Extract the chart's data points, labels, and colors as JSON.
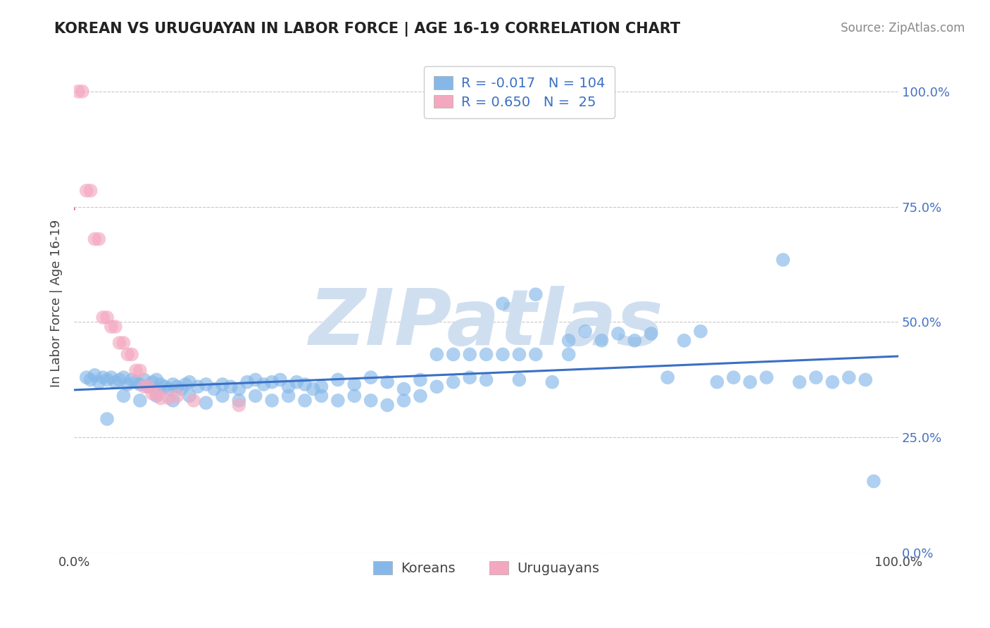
{
  "title": "KOREAN VS URUGUAYAN IN LABOR FORCE | AGE 16-19 CORRELATION CHART",
  "source_text": "Source: ZipAtlas.com",
  "ylabel": "In Labor Force | Age 16-19",
  "xlim": [
    0.0,
    1.0
  ],
  "ylim": [
    0.0,
    1.08
  ],
  "yticks": [
    0.0,
    0.25,
    0.5,
    0.75,
    1.0
  ],
  "xticks": [
    0.0,
    1.0
  ],
  "xtick_labels": [
    "0.0%",
    "100.0%"
  ],
  "ytick_labels_right": [
    "0.0%",
    "25.0%",
    "50.0%",
    "75.0%",
    "100.0%"
  ],
  "korean_R": -0.017,
  "korean_N": 104,
  "uruguayan_R": 0.65,
  "uruguayan_N": 25,
  "korean_color": "#85b8e8",
  "uruguayan_color": "#f4a8c0",
  "trend_korean_color": "#3a6fc4",
  "trend_uruguayan_color": "#e06080",
  "watermark": "ZIPatlas",
  "watermark_color": "#d0dff0",
  "background_color": "#ffffff",
  "grid_color": "#c8c8c8",
  "legend_label_korean": "Koreans",
  "legend_label_uruguayan": "Uruguayans",
  "k_x": [
    0.015,
    0.02,
    0.025,
    0.03,
    0.035,
    0.04,
    0.045,
    0.05,
    0.055,
    0.06,
    0.065,
    0.07,
    0.075,
    0.08,
    0.085,
    0.09,
    0.095,
    0.1,
    0.105,
    0.11,
    0.115,
    0.12,
    0.125,
    0.13,
    0.135,
    0.14,
    0.15,
    0.16,
    0.17,
    0.18,
    0.19,
    0.2,
    0.21,
    0.22,
    0.23,
    0.24,
    0.25,
    0.26,
    0.27,
    0.28,
    0.29,
    0.3,
    0.32,
    0.34,
    0.36,
    0.38,
    0.4,
    0.42,
    0.44,
    0.46,
    0.48,
    0.5,
    0.52,
    0.54,
    0.56,
    0.58,
    0.6,
    0.62,
    0.64,
    0.66,
    0.68,
    0.7,
    0.72,
    0.74,
    0.76,
    0.78,
    0.8,
    0.82,
    0.84,
    0.86,
    0.88,
    0.9,
    0.92,
    0.94,
    0.96,
    0.97,
    0.04,
    0.06,
    0.08,
    0.1,
    0.12,
    0.14,
    0.16,
    0.18,
    0.2,
    0.22,
    0.24,
    0.26,
    0.28,
    0.3,
    0.32,
    0.34,
    0.36,
    0.38,
    0.4,
    0.42,
    0.44,
    0.46,
    0.48,
    0.5,
    0.52,
    0.54,
    0.56,
    0.6
  ],
  "k_y": [
    0.38,
    0.375,
    0.385,
    0.37,
    0.38,
    0.375,
    0.38,
    0.37,
    0.375,
    0.38,
    0.365,
    0.375,
    0.37,
    0.365,
    0.375,
    0.36,
    0.37,
    0.375,
    0.365,
    0.36,
    0.355,
    0.365,
    0.36,
    0.355,
    0.365,
    0.37,
    0.36,
    0.365,
    0.355,
    0.365,
    0.36,
    0.355,
    0.37,
    0.375,
    0.365,
    0.37,
    0.375,
    0.36,
    0.37,
    0.365,
    0.355,
    0.36,
    0.375,
    0.365,
    0.38,
    0.37,
    0.355,
    0.375,
    0.36,
    0.37,
    0.38,
    0.375,
    0.54,
    0.375,
    0.56,
    0.37,
    0.46,
    0.48,
    0.46,
    0.475,
    0.46,
    0.475,
    0.38,
    0.46,
    0.48,
    0.37,
    0.38,
    0.37,
    0.38,
    0.635,
    0.37,
    0.38,
    0.37,
    0.38,
    0.375,
    0.155,
    0.29,
    0.34,
    0.33,
    0.34,
    0.33,
    0.34,
    0.325,
    0.34,
    0.33,
    0.34,
    0.33,
    0.34,
    0.33,
    0.34,
    0.33,
    0.34,
    0.33,
    0.32,
    0.33,
    0.34,
    0.43,
    0.43,
    0.43,
    0.43,
    0.43,
    0.43,
    0.43,
    0.43
  ],
  "u_x": [
    0.005,
    0.01,
    0.015,
    0.02,
    0.025,
    0.03,
    0.035,
    0.04,
    0.045,
    0.05,
    0.055,
    0.06,
    0.065,
    0.07,
    0.075,
    0.08,
    0.085,
    0.09,
    0.095,
    0.1,
    0.105,
    0.115,
    0.125,
    0.145,
    0.2
  ],
  "u_y": [
    1.0,
    1.0,
    0.785,
    0.785,
    0.68,
    0.68,
    0.51,
    0.51,
    0.49,
    0.49,
    0.455,
    0.455,
    0.43,
    0.43,
    0.395,
    0.395,
    0.36,
    0.36,
    0.345,
    0.345,
    0.335,
    0.335,
    0.34,
    0.33,
    0.32
  ],
  "title_fontsize": 15,
  "tick_fontsize": 13,
  "ylabel_fontsize": 13,
  "legend_fontsize": 14,
  "source_fontsize": 12
}
